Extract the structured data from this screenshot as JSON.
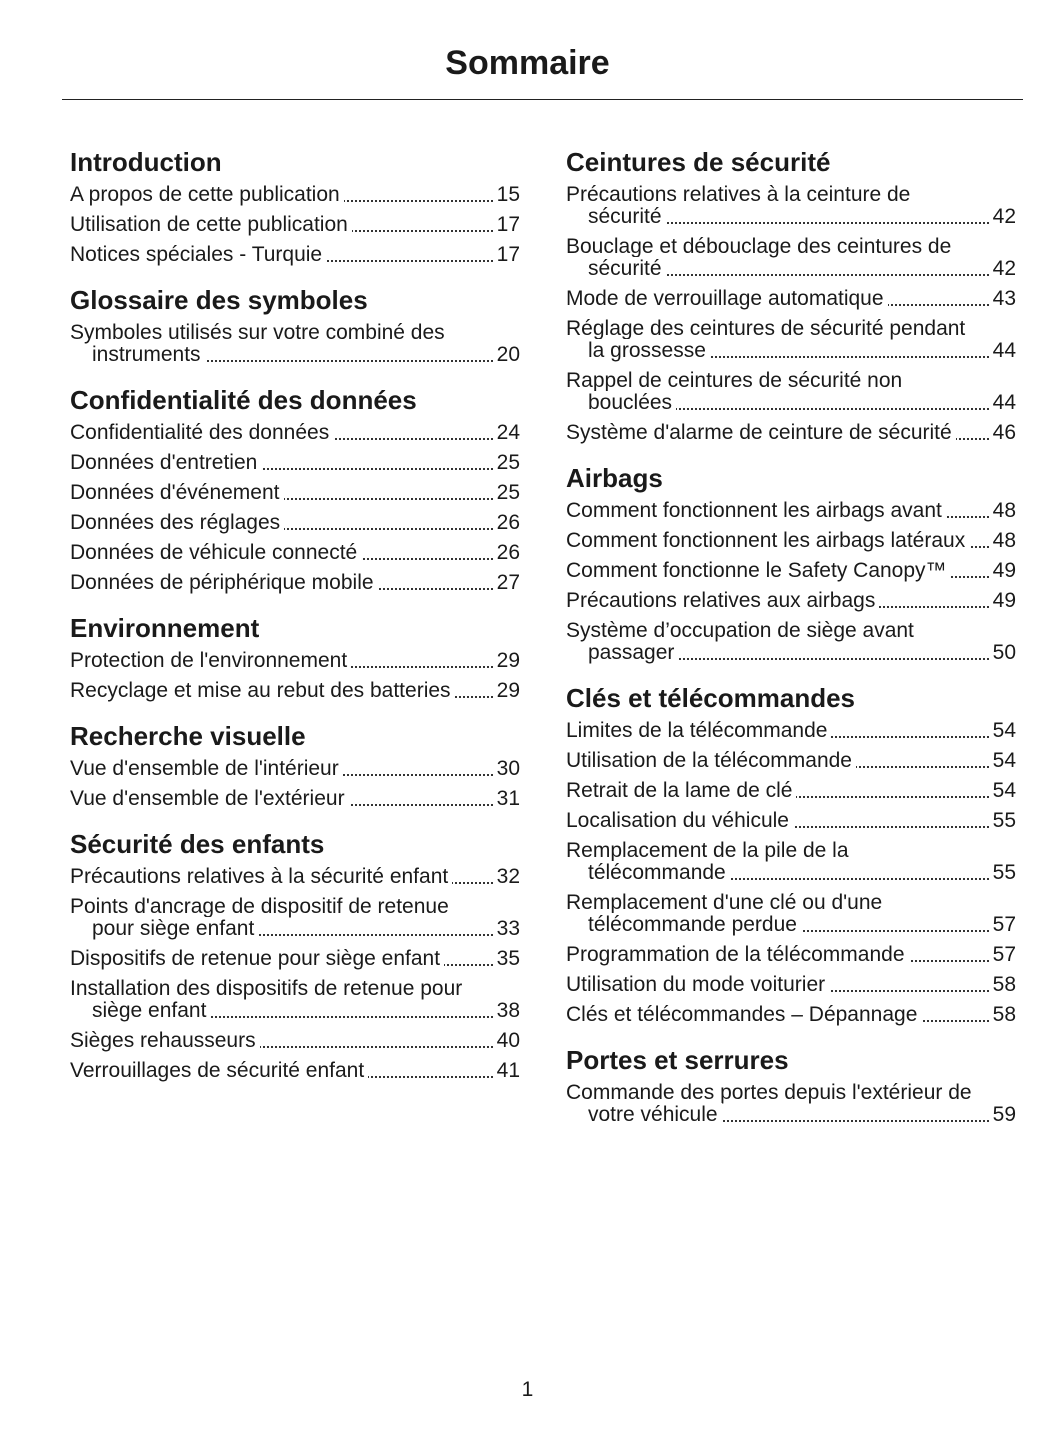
{
  "title": "Sommaire",
  "columns": [
    {
      "sections": [
        {
          "heading": "Introduction",
          "entries": [
            {
              "text": "A propos de cette publication",
              "page": 15
            },
            {
              "text": "Utilisation de cette publication",
              "page": 17
            },
            {
              "text": "Notices spéciales - Turquie",
              "page": 17
            }
          ]
        },
        {
          "heading": "Glossaire des symboles",
          "entries": [
            {
              "text": "Symboles utilisés sur votre combiné des instruments",
              "page": 20
            }
          ]
        },
        {
          "heading": "Confidentialité des données",
          "entries": [
            {
              "text": "Confidentialité des données",
              "page": 24
            },
            {
              "text": "Données d'entretien",
              "page": 25
            },
            {
              "text": "Données d'événement",
              "page": 25
            },
            {
              "text": "Données des réglages",
              "page": 26
            },
            {
              "text": "Données de véhicule connecté",
              "page": 26
            },
            {
              "text": "Données de périphérique mobile",
              "page": 27
            }
          ]
        },
        {
          "heading": "Environnement",
          "entries": [
            {
              "text": "Protection de l'environnement",
              "page": 29
            },
            {
              "text": "Recyclage et mise au rebut des batteries",
              "page": 29
            }
          ]
        },
        {
          "heading": "Recherche visuelle",
          "entries": [
            {
              "text": "Vue d'ensemble de l'intérieur",
              "page": 30
            },
            {
              "text": "Vue d'ensemble de l'extérieur",
              "page": 31
            }
          ]
        },
        {
          "heading": "Sécurité des enfants",
          "entries": [
            {
              "text": "Précautions relatives à la sécurité enfant",
              "page": 32
            },
            {
              "text": "Points d'ancrage de dispositif de retenue pour siège enfant",
              "page": 33
            },
            {
              "text": "Dispositifs de retenue pour siège enfant",
              "page": 35
            },
            {
              "text": "Installation des dispositifs de retenue pour siège enfant",
              "page": 38
            },
            {
              "text": "Sièges rehausseurs",
              "page": 40
            },
            {
              "text": "Verrouillages de sécurité enfant",
              "page": 41
            }
          ]
        }
      ]
    },
    {
      "sections": [
        {
          "heading": "Ceintures de sécurité",
          "entries": [
            {
              "text": "Précautions relatives à la ceinture de sécurité",
              "page": 42
            },
            {
              "text": "Bouclage et débouclage des ceintures de sécurité",
              "page": 42
            },
            {
              "text": "Mode de verrouillage automatique",
              "page": 43
            },
            {
              "text": "Réglage des ceintures de sécurité pendant la grossesse",
              "page": 44
            },
            {
              "text": "Rappel de ceintures de sécurité non bouclées",
              "page": 44
            },
            {
              "text": "Système d'alarme de ceinture de sécurité",
              "page": 46
            }
          ]
        },
        {
          "heading": "Airbags",
          "entries": [
            {
              "text": "Comment fonctionnent les airbags avant",
              "page": 48
            },
            {
              "text": "Comment fonctionnent les airbags latéraux",
              "page": 48
            },
            {
              "text": "Comment fonctionne le Safety Canopy™",
              "page": 49
            },
            {
              "text": "Précautions relatives aux airbags",
              "page": 49
            },
            {
              "text": "Système d’occupation de siège avant passager",
              "page": 50
            }
          ]
        },
        {
          "heading": "Clés et télécommandes",
          "entries": [
            {
              "text": "Limites de la télécommande",
              "page": 54
            },
            {
              "text": "Utilisation de la télécommande",
              "page": 54
            },
            {
              "text": "Retrait de la lame de clé",
              "page": 54
            },
            {
              "text": "Localisation du véhicule",
              "page": 55
            },
            {
              "text": "Remplacement de la pile de la télécommande",
              "page": 55
            },
            {
              "text": "Remplacement d'une clé ou d'une télécommande perdue",
              "page": 57
            },
            {
              "text": "Programmation de la télécommande",
              "page": 57
            },
            {
              "text": "Utilisation du mode voiturier",
              "page": 58
            },
            {
              "text": "Clés et télécommandes – Dépannage",
              "page": 58
            }
          ]
        },
        {
          "heading": "Portes et serrures",
          "entries": [
            {
              "text": "Commande des portes depuis l'extérieur de votre véhicule",
              "page": 59
            }
          ]
        }
      ]
    }
  ],
  "page_number": 1
}
